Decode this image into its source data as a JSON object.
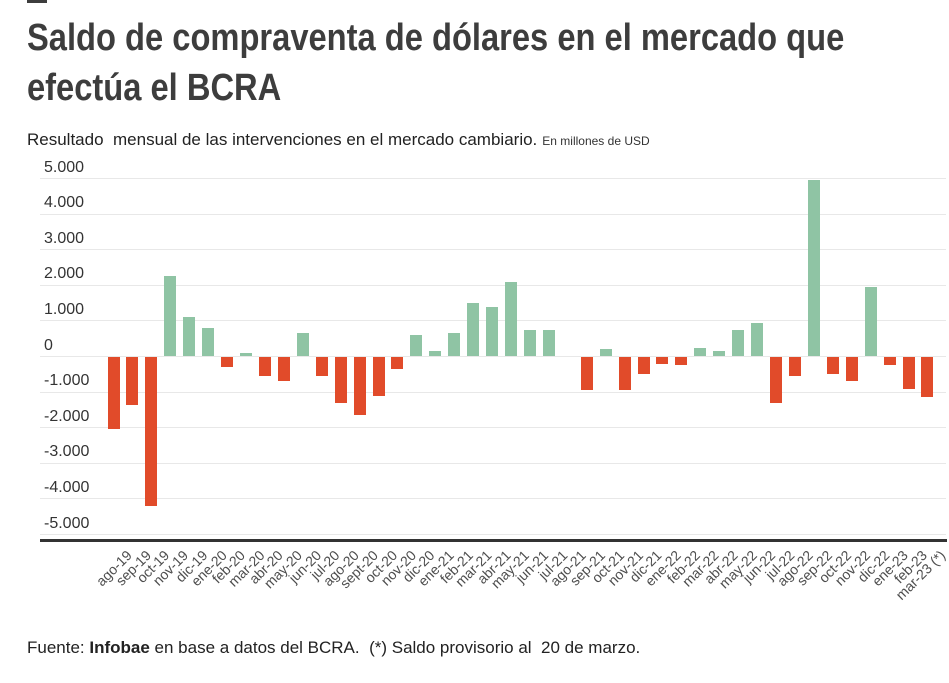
{
  "header": {
    "title_line1": "Saldo de compraventa de dólares en el mercado que",
    "title_line2": "efectúa el BCRA",
    "subtitle": "Resultado  mensual de las intervenciones en el mercado cambiario.",
    "subtitle_unit": "En millones de USD"
  },
  "footer": {
    "prefix": "Fuente: ",
    "source": "Infobae",
    "rest": " en base a datos del BCRA.  (*) Saldo provisorio al  20 de marzo."
  },
  "colors": {
    "positive": "#8FC4A4",
    "negative": "#E14B2A",
    "gridline": "#E8E8E8",
    "baseline": "#333333",
    "title_text": "#3D3D3D",
    "axis_label": "#333333",
    "x_label": "#4D4D4D"
  },
  "chart_data": {
    "type": "bar",
    "title": "Saldo de compraventa de dólares en el mercado que efectúa el BCRA",
    "subtitle": "Resultado mensual de las intervenciones en el mercado cambiario.",
    "unit": "En millones de USD",
    "grid": true,
    "legend": false,
    "ylim": [
      -5000,
      5000
    ],
    "ytick_values": [
      5000,
      4000,
      3000,
      2000,
      1000,
      0,
      -1000,
      -2000,
      -3000,
      -4000,
      -5000
    ],
    "ytick_labels": [
      "5.000",
      "4.000",
      "3.000",
      "2.000",
      "1.000",
      "0",
      "-1.000",
      "-2.000",
      "-3.000",
      "-4.000",
      "-5.000"
    ],
    "categories": [
      "ago-19",
      "sep-19",
      "oct-19",
      "nov-19",
      "dic-19",
      "ene-20",
      "feb-20",
      "mar-20",
      "abr-20",
      "may-20",
      "jun-20",
      "jul-20",
      "ago-20",
      "sept-20",
      "oct-20",
      "nov-20",
      "dic-20",
      "ene-21",
      "feb-21",
      "mar-21",
      "abr-21",
      "may-21",
      "jun-21",
      "jul-21",
      "ago-21",
      "sep-21",
      "oct-21",
      "nov-21",
      "dic-21",
      "ene-22",
      "feb-22",
      "mar-22",
      "abr-22",
      "may-22",
      "jun-22",
      "jul-22",
      "ago-22",
      "sep-22",
      "oct-22",
      "nov-22",
      "dic-22",
      "ene-23",
      "feb-23",
      "mar-23 (*)"
    ],
    "values": [
      -2050,
      -1350,
      -4200,
      2250,
      1100,
      800,
      -300,
      100,
      -550,
      -700,
      650,
      -550,
      -1300,
      -1650,
      -1100,
      -350,
      600,
      150,
      650,
      1500,
      1400,
      2100,
      750,
      750,
      0,
      -950,
      200,
      -950,
      -500,
      -200,
      -250,
      250,
      150,
      750,
      950,
      -1300,
      -550,
      4950,
      -500,
      -700,
      1950,
      -250,
      -900,
      -1150
    ]
  }
}
